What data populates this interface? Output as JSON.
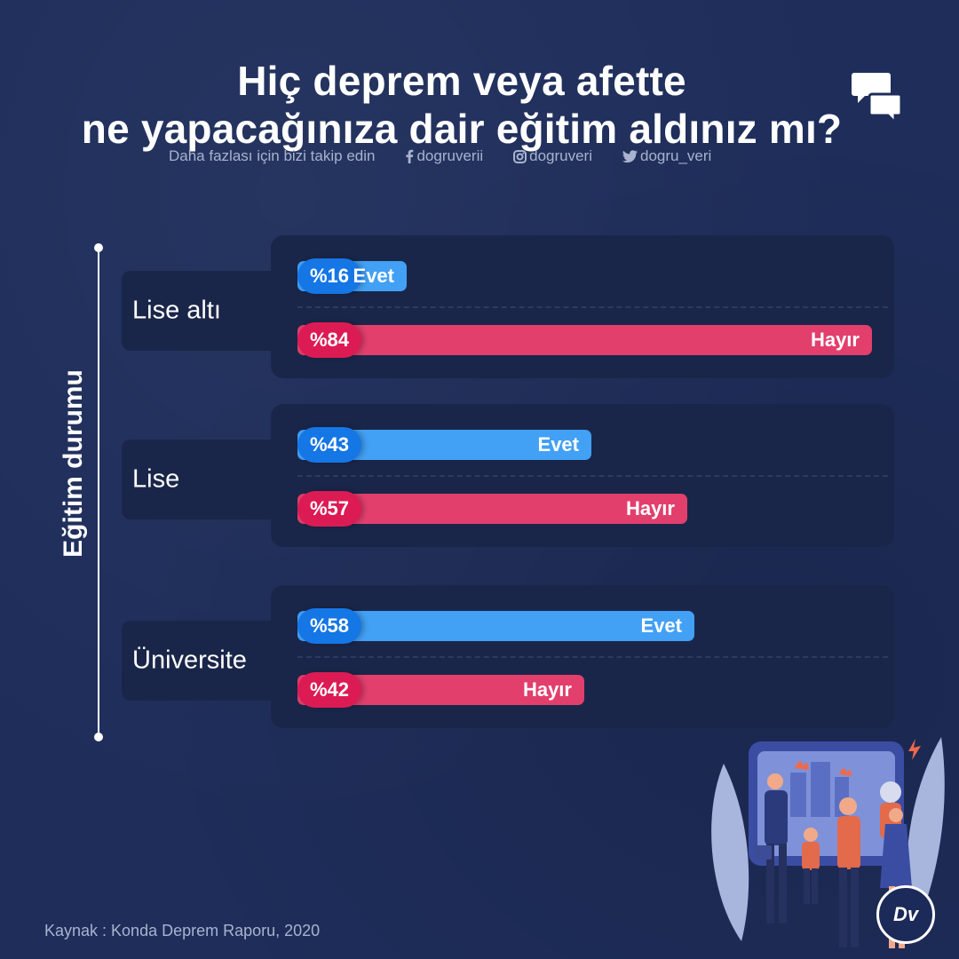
{
  "title": {
    "line1": "Hiç deprem veya afette",
    "line2": "ne yapacağınıza dair eğitim aldınız mı?"
  },
  "social": {
    "follow_text": "Daha fazlası için bizi takip edin",
    "facebook": "dogruverii",
    "instagram": "dogruveri",
    "twitter": "dogru_veri",
    "icons": [
      "facebook-icon",
      "instagram-icon",
      "twitter-icon"
    ]
  },
  "axis": {
    "label": "Eğitim durumu"
  },
  "source": "Kaynak : Konda Deprem Raporu, 2020",
  "logo": {
    "text": "Dv"
  },
  "colors": {
    "evet_bar": "#42a0f5",
    "evet_pill": "#1576e6",
    "hayir_bar": "#e23f6d",
    "hayir_pill": "#dc1b54",
    "background": "#1e2d5a"
  },
  "chart_data": {
    "type": "bar",
    "orientation": "horizontal",
    "title": "Hiç deprem veya afette ne yapacağınıza dair eğitim aldınız mı?",
    "ylabel": "Eğitim durumu",
    "xlim": [
      0,
      100
    ],
    "categories": [
      "Lise altı",
      "Lise",
      "Üniversite"
    ],
    "series": [
      {
        "name": "Evet",
        "values": [
          16,
          43,
          58
        ],
        "labels": [
          "%16",
          "%43",
          "%58"
        ]
      },
      {
        "name": "Hayır",
        "values": [
          84,
          57,
          42
        ],
        "labels": [
          "%84",
          "%57",
          "%42"
        ]
      }
    ]
  }
}
